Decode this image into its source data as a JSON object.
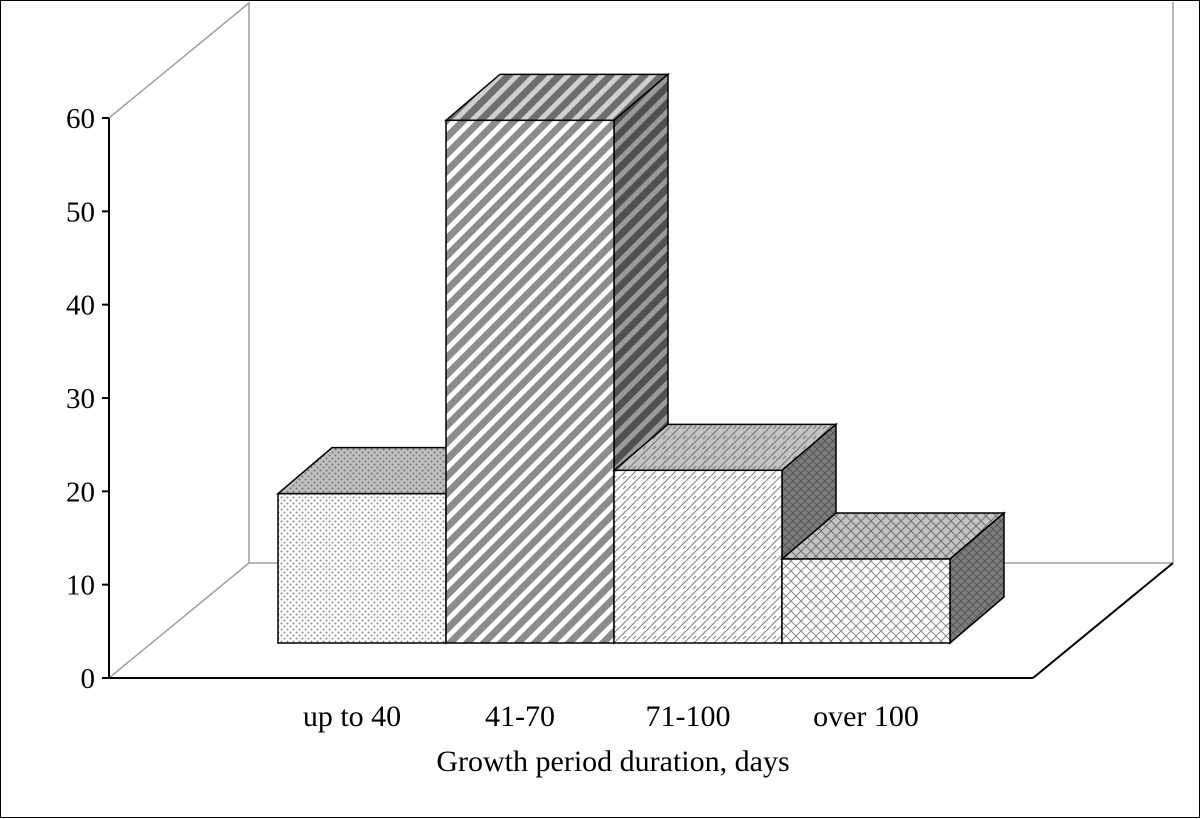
{
  "chart_data": {
    "type": "bar",
    "style": "3d",
    "title": "",
    "xlabel": "Growth period duration, days",
    "ylabel": "",
    "categories": [
      "up to 40",
      "41-70",
      "71-100",
      "over 100"
    ],
    "values": [
      16,
      56,
      18.5,
      9
    ],
    "ylim": [
      0,
      60
    ],
    "yticks": [
      0,
      10,
      20,
      30,
      40,
      50,
      60
    ],
    "grid": false,
    "legend": "none",
    "colors": {
      "front": "#ffffff",
      "pattern": "#888888",
      "top": "#b4b4b4",
      "side": "#7a7a7a",
      "outline": "#000000",
      "wall": "#a0a0a0"
    }
  }
}
